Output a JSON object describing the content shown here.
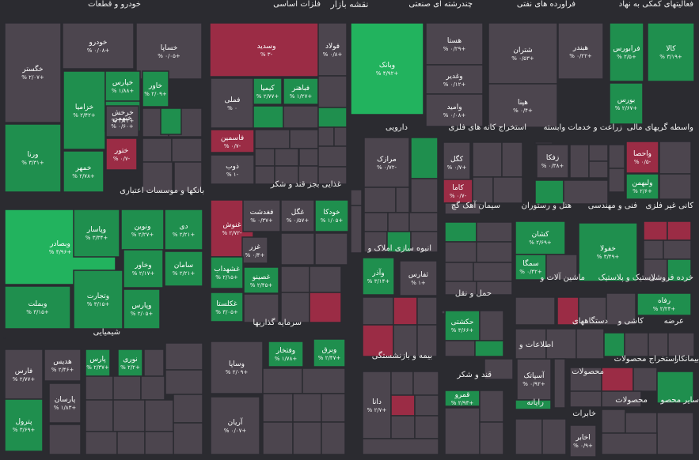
{
  "title": "نقشه بازار",
  "colors": {
    "background": "#2b2b30",
    "strong_green": "#22b35e",
    "green": "#1f8f4e",
    "flat": "#4c454e",
    "red": "#9b2c45",
    "strong_red": "#c3314f"
  },
  "sectors": [
    {
      "id": "khodro",
      "label": "خودرو و قطعات"
    },
    {
      "id": "felezat",
      "label": "فلزات اساسی"
    },
    {
      "id": "chandreshte",
      "label": "چندرشته ای صنعتی"
    },
    {
      "id": "naft",
      "label": "فرآورده های نفتی"
    },
    {
      "id": "komaki",
      "label": "فعالیتهای کمکی به نهاد"
    },
    {
      "id": "vasete",
      "label": "واسطه گریهای مالی"
    },
    {
      "id": "bank",
      "label": "بانکها و موسسات اعتباری"
    },
    {
      "id": "daroo",
      "label": "دارویی"
    },
    {
      "id": "estekhraj",
      "label": "استخراج کانه های فلزی"
    },
    {
      "id": "zeraat",
      "label": "زراعت و خدمات وابسته"
    },
    {
      "id": "ghaza",
      "label": "غذایی بجز قند و شکر"
    },
    {
      "id": "siman",
      "label": "سیمان آهک گچ"
    },
    {
      "id": "hotel",
      "label": "هتل و رستوران"
    },
    {
      "id": "fani",
      "label": "فنی و مهندسی"
    },
    {
      "id": "kani",
      "label": "کانی غیر فلزی"
    },
    {
      "id": "anbooh",
      "label": "انبوه سازی املاک و"
    },
    {
      "id": "mashin",
      "label": "ماشین آلات و"
    },
    {
      "id": "lastik",
      "label": "لاستیک و پلاستیک"
    },
    {
      "id": "khorde",
      "label": "خرده فروشی"
    },
    {
      "id": "haml",
      "label": "حمل و نقل"
    },
    {
      "id": "sarmaye",
      "label": "سرمایه گذاریها"
    },
    {
      "id": "shimiyaei",
      "label": "شیمیایی"
    },
    {
      "id": "kashi",
      "label": "کاشی و"
    },
    {
      "id": "dastgah",
      "label": "دستگاههای"
    },
    {
      "id": "arze",
      "label": "عرضه"
    },
    {
      "id": "etelaat",
      "label": "اطلاعات و"
    },
    {
      "id": "bime",
      "label": "بیمه و بازنشستگی"
    },
    {
      "id": "ghand",
      "label": "قند و شکر"
    },
    {
      "id": "mahsoolat",
      "label": "محصولات"
    },
    {
      "id": "mahsoolat2",
      "label": "استخراج محصولات"
    },
    {
      "id": "bimankar",
      "label": "بیمانکار"
    },
    {
      "id": "rayane",
      "label": "رایانه"
    },
    {
      "id": "sayer",
      "label": "سایر محصو"
    },
    {
      "id": "mahsoolat3",
      "label": "محصولات"
    },
    {
      "id": "khabari",
      "label": "خابرات"
    }
  ],
  "tiles": [
    {
      "name": "خگستر",
      "change": "+۲/۰۷ %",
      "state": "flat"
    },
    {
      "name": "خودرو",
      "change": "+۰/۰۸ %",
      "state": "flat"
    },
    {
      "name": "خساپا",
      "change": "+۰/۰۵ %",
      "state": "flat"
    },
    {
      "name": "ورنا",
      "change": "+۳/۳۱ %",
      "state": "green"
    },
    {
      "name": "خزامیا",
      "change": "+۲/۴۲ %",
      "state": "green"
    },
    {
      "name": "خپارس",
      "change": "+۱/۸۸ %",
      "state": "green"
    },
    {
      "name": "خمهر",
      "change": "+۲/۷۸ %",
      "state": "green"
    },
    {
      "name": "خاور",
      "change": "+۲/۰۹ %",
      "state": "green"
    },
    {
      "name": "خرخش",
      "change": "+۲/۴۴ %",
      "state": "green"
    },
    {
      "name": "خبهمن",
      "change": "+۰/۶۰ %",
      "state": "flat"
    },
    {
      "name": "ختور",
      "change": "-۰/۷ %",
      "state": "red"
    },
    {
      "name": "وسدید",
      "change": "-۳ %",
      "state": "red"
    },
    {
      "name": "فولاد",
      "change": "+۰/۸ %",
      "state": "flat"
    },
    {
      "name": "فملی",
      "change": "۰ %",
      "state": "flat"
    },
    {
      "name": "کیمیا",
      "change": "+۲/۷۷ %",
      "state": "green"
    },
    {
      "name": "فباهنر",
      "change": "+۱/۲۷ %",
      "state": "green"
    },
    {
      "name": "فاسمین",
      "change": "-۰/۷ %",
      "state": "red"
    },
    {
      "name": "ذوب",
      "change": "-۱ %",
      "state": "flat"
    },
    {
      "name": "وبانک",
      "change": "+۴/۹۲ %",
      "state": "strong_green"
    },
    {
      "name": "هستا",
      "change": "+۰/۲۹ %",
      "state": "flat"
    },
    {
      "name": "وغدیر",
      "change": "+۰/۱۲ %",
      "state": "flat"
    },
    {
      "name": "وامید",
      "change": "+۰/۰۸ %",
      "state": "flat"
    },
    {
      "name": "شتران",
      "change": "+۰/۵۳ %",
      "state": "flat"
    },
    {
      "name": "هبندر",
      "change": "+۰/۲۲ %",
      "state": "flat"
    },
    {
      "name": "هپنا",
      "change": "+۰/۴ %",
      "state": "flat"
    },
    {
      "name": "فرابورس",
      "change": "+۲/۵ %",
      "state": "green"
    },
    {
      "name": "کالا",
      "change": "+۳/۱۹ %",
      "state": "green"
    },
    {
      "name": "بورس",
      "change": "+۲/۶۷ %",
      "state": "green"
    },
    {
      "name": "وبصادر",
      "change": "+۴/۹۶ %",
      "state": "strong_green"
    },
    {
      "name": "وپاسار",
      "change": "+۳/۳۴ %",
      "state": "green"
    },
    {
      "name": "ونوین",
      "change": "+۲/۲۷ %",
      "state": "green"
    },
    {
      "name": "دی",
      "change": "+۲/۲۱ %",
      "state": "green"
    },
    {
      "name": "وبملت",
      "change": "+۳/۱۵ %",
      "state": "green"
    },
    {
      "name": "وتجارت",
      "change": "+۳/۱۵ %",
      "state": "green"
    },
    {
      "name": "وخاور",
      "change": "+۲/۱۷ %",
      "state": "green"
    },
    {
      "name": "سامان",
      "change": "+۲/۲۱ %",
      "state": "green"
    },
    {
      "name": "وپارس",
      "change": "+۲/۰۵ %",
      "state": "green"
    },
    {
      "name": "مرازک",
      "change": "-۰/۷۲ %",
      "state": "flat"
    },
    {
      "name": "کگل",
      "change": "+۰/۷ %",
      "state": "flat"
    },
    {
      "name": "کاما",
      "change": "-۰/۷ %",
      "state": "red"
    },
    {
      "name": "زفکا",
      "change": "+۰/۳۸ %",
      "state": "flat"
    },
    {
      "name": "واحصا",
      "change": "-۰/۵ %",
      "state": "red"
    },
    {
      "name": "ولبهمن",
      "change": "+۲/۶ %",
      "state": "green"
    },
    {
      "name": "غنوش",
      "change": "-۲/۷۲ %",
      "state": "red"
    },
    {
      "name": "فغدشت",
      "change": "+۰/۳۷ %",
      "state": "flat"
    },
    {
      "name": "غگل",
      "change": "+۰/۵۷ %",
      "state": "flat"
    },
    {
      "name": "خودکا",
      "change": "+۱/۰۵ %",
      "state": "green"
    },
    {
      "name": "غزر",
      "change": "+۰/۴ %",
      "state": "flat"
    },
    {
      "name": "غشهداب",
      "change": "+۲/۱۵ %",
      "state": "green"
    },
    {
      "name": "غصینو",
      "change": "+۲/۴۵ %",
      "state": "green"
    },
    {
      "name": "غکلستا",
      "change": "+۳/۰۵ %",
      "state": "green"
    },
    {
      "name": "کشان",
      "change": "+۲/۶۹ %",
      "state": "green"
    },
    {
      "name": "خفولا",
      "change": "+۳/۴۹ %",
      "state": "green"
    },
    {
      "name": "سمگا",
      "change": "+۰/۴۲ %",
      "state": "green"
    },
    {
      "name": "وآذر",
      "change": "+۳/۱۴ %",
      "state": "green"
    },
    {
      "name": "ثفارس",
      "change": "+۱ %",
      "state": "flat"
    },
    {
      "name": "رفاه",
      "change": "+۲/۲۴ %",
      "state": "green"
    },
    {
      "name": "حکشتی",
      "change": "+۳/۶۶ %",
      "state": "green"
    },
    {
      "name": "وفتخار",
      "change": "+۱/۷۸ %",
      "state": "green"
    },
    {
      "name": "وبرق",
      "change": "+۲/۴۷ %",
      "state": "green"
    },
    {
      "name": "وساپا",
      "change": "+۲/۰۹ %",
      "state": "flat"
    },
    {
      "name": "آریان",
      "change": "+۰/۰۷ %",
      "state": "flat"
    },
    {
      "name": "فارس",
      "change": "+۲/۷۷ %",
      "state": "flat"
    },
    {
      "name": "هدیس",
      "change": "+۲/۴۶ %",
      "state": "flat"
    },
    {
      "name": "پارس",
      "change": "+۲/۳۷ %",
      "state": "green"
    },
    {
      "name": "نوری",
      "change": "+۲/۲ %",
      "state": "green"
    },
    {
      "name": "پارسان",
      "change": "+۱/۸۳ %",
      "state": "flat"
    },
    {
      "name": "پترول",
      "change": "+۳/۶۹ %",
      "state": "green"
    },
    {
      "name": "آسپاتک",
      "change": "+۰/۹۲ %",
      "state": "flat"
    },
    {
      "name": "قمرو",
      "change": "+۲/۹۳ %",
      "state": "green"
    },
    {
      "name": "دانا",
      "change": "+۲/۷ %",
      "state": "flat"
    },
    {
      "name": "اخابر",
      "change": "+۰/۹ %",
      "state": "flat"
    }
  ]
}
